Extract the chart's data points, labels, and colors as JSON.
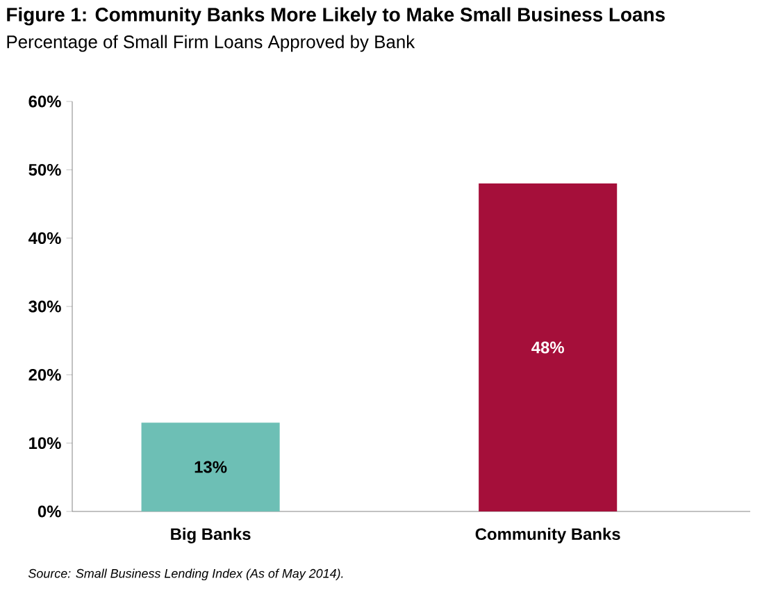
{
  "chart_data": {
    "type": "bar",
    "title": "Figure 1: Community Banks More Likely to Make Small Business Loans",
    "subtitle": "Percentage of Small Firm Loans Approved by Bank",
    "categories": [
      "Big Banks",
      "Community Banks"
    ],
    "values": [
      13,
      48
    ],
    "colors": [
      "#6dbfb5",
      "#a50f3a"
    ],
    "value_labels": [
      "13%",
      "48%"
    ],
    "ylim": [
      0,
      60
    ],
    "yticks": [
      {
        "value": 0,
        "label": "0%"
      },
      {
        "value": 10,
        "label": "10%"
      },
      {
        "value": 20,
        "label": "20%"
      },
      {
        "value": 30,
        "label": "30%"
      },
      {
        "value": 40,
        "label": "40%"
      },
      {
        "value": 50,
        "label": "50%"
      },
      {
        "value": 60,
        "label": "60%"
      }
    ],
    "annotations": [
      "Source: Small Business Lending Index (As of May 2014)."
    ]
  }
}
